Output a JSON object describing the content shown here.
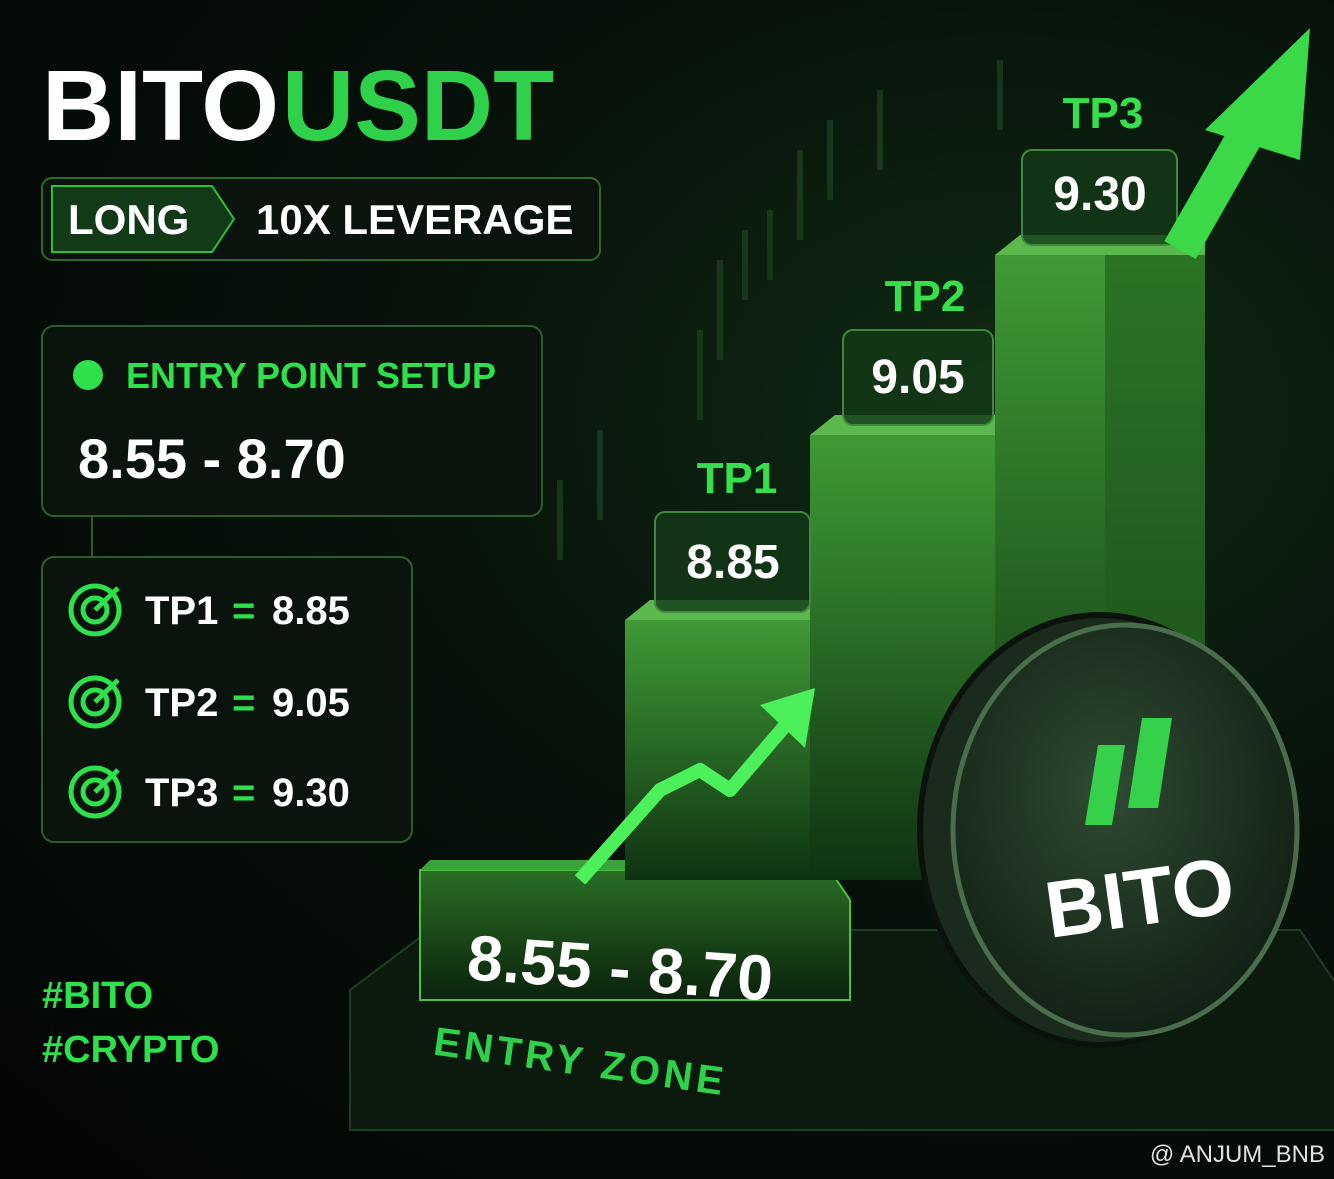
{
  "header": {
    "title_left": "BITO",
    "title_right": "USDT"
  },
  "tags": {
    "direction": "LONG",
    "leverage": "10X LEVERAGE"
  },
  "entry": {
    "label": "ENTRY POINT SETUP",
    "range": "8.55 - 8.70"
  },
  "targets": {
    "separator": "=",
    "rows": [
      {
        "label": "TP1",
        "value": "8.85"
      },
      {
        "label": "TP2",
        "value": "9.05"
      },
      {
        "label": "TP3",
        "value": "9.30"
      }
    ]
  },
  "hashtags": [
    "#BITO",
    "#CRYPTO"
  ],
  "illustration": {
    "zone_label": "ENTRY ZONE",
    "coin": "BITO"
  },
  "watermark": "@ ANJUM_BNB"
}
